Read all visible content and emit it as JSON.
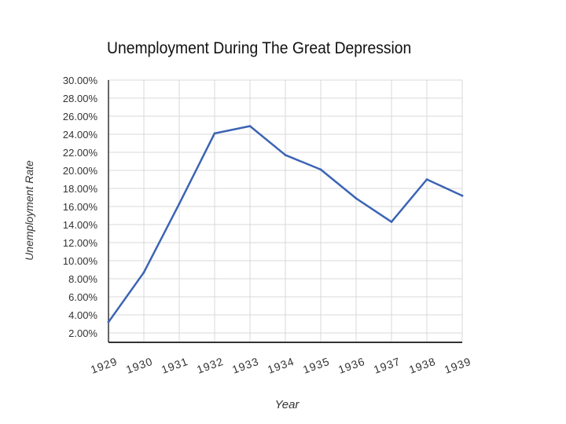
{
  "chart_data": {
    "type": "line",
    "title": "Unemployment During The Great Depression",
    "xlabel": "Year",
    "ylabel": "Unemployment Rate",
    "categories": [
      "1929",
      "1930",
      "1931",
      "1932",
      "1933",
      "1934",
      "1935",
      "1936",
      "1937",
      "1938",
      "1939"
    ],
    "series": [
      {
        "values": [
          3.2,
          8.7,
          16.3,
          24.1,
          24.9,
          21.7,
          20.1,
          16.9,
          14.3,
          19.0,
          17.2
        ]
      }
    ],
    "ylim": [
      2,
      30
    ],
    "y_ticks": [
      "2.00%",
      "4.00%",
      "6.00%",
      "8.00%",
      "10.00%",
      "12.00%",
      "14.00%",
      "16.00%",
      "18.00%",
      "20.00%",
      "22.00%",
      "24.00%",
      "26.00%",
      "28.00%",
      "30.00%"
    ],
    "y_tick_values": [
      2,
      4,
      6,
      8,
      10,
      12,
      14,
      16,
      18,
      20,
      22,
      24,
      26,
      28,
      30
    ],
    "grid": true,
    "legend": "none",
    "colors": {
      "line": "#3c64b4",
      "grid": "#d9d9d9",
      "axis": "#333333",
      "text": "#333333"
    }
  }
}
